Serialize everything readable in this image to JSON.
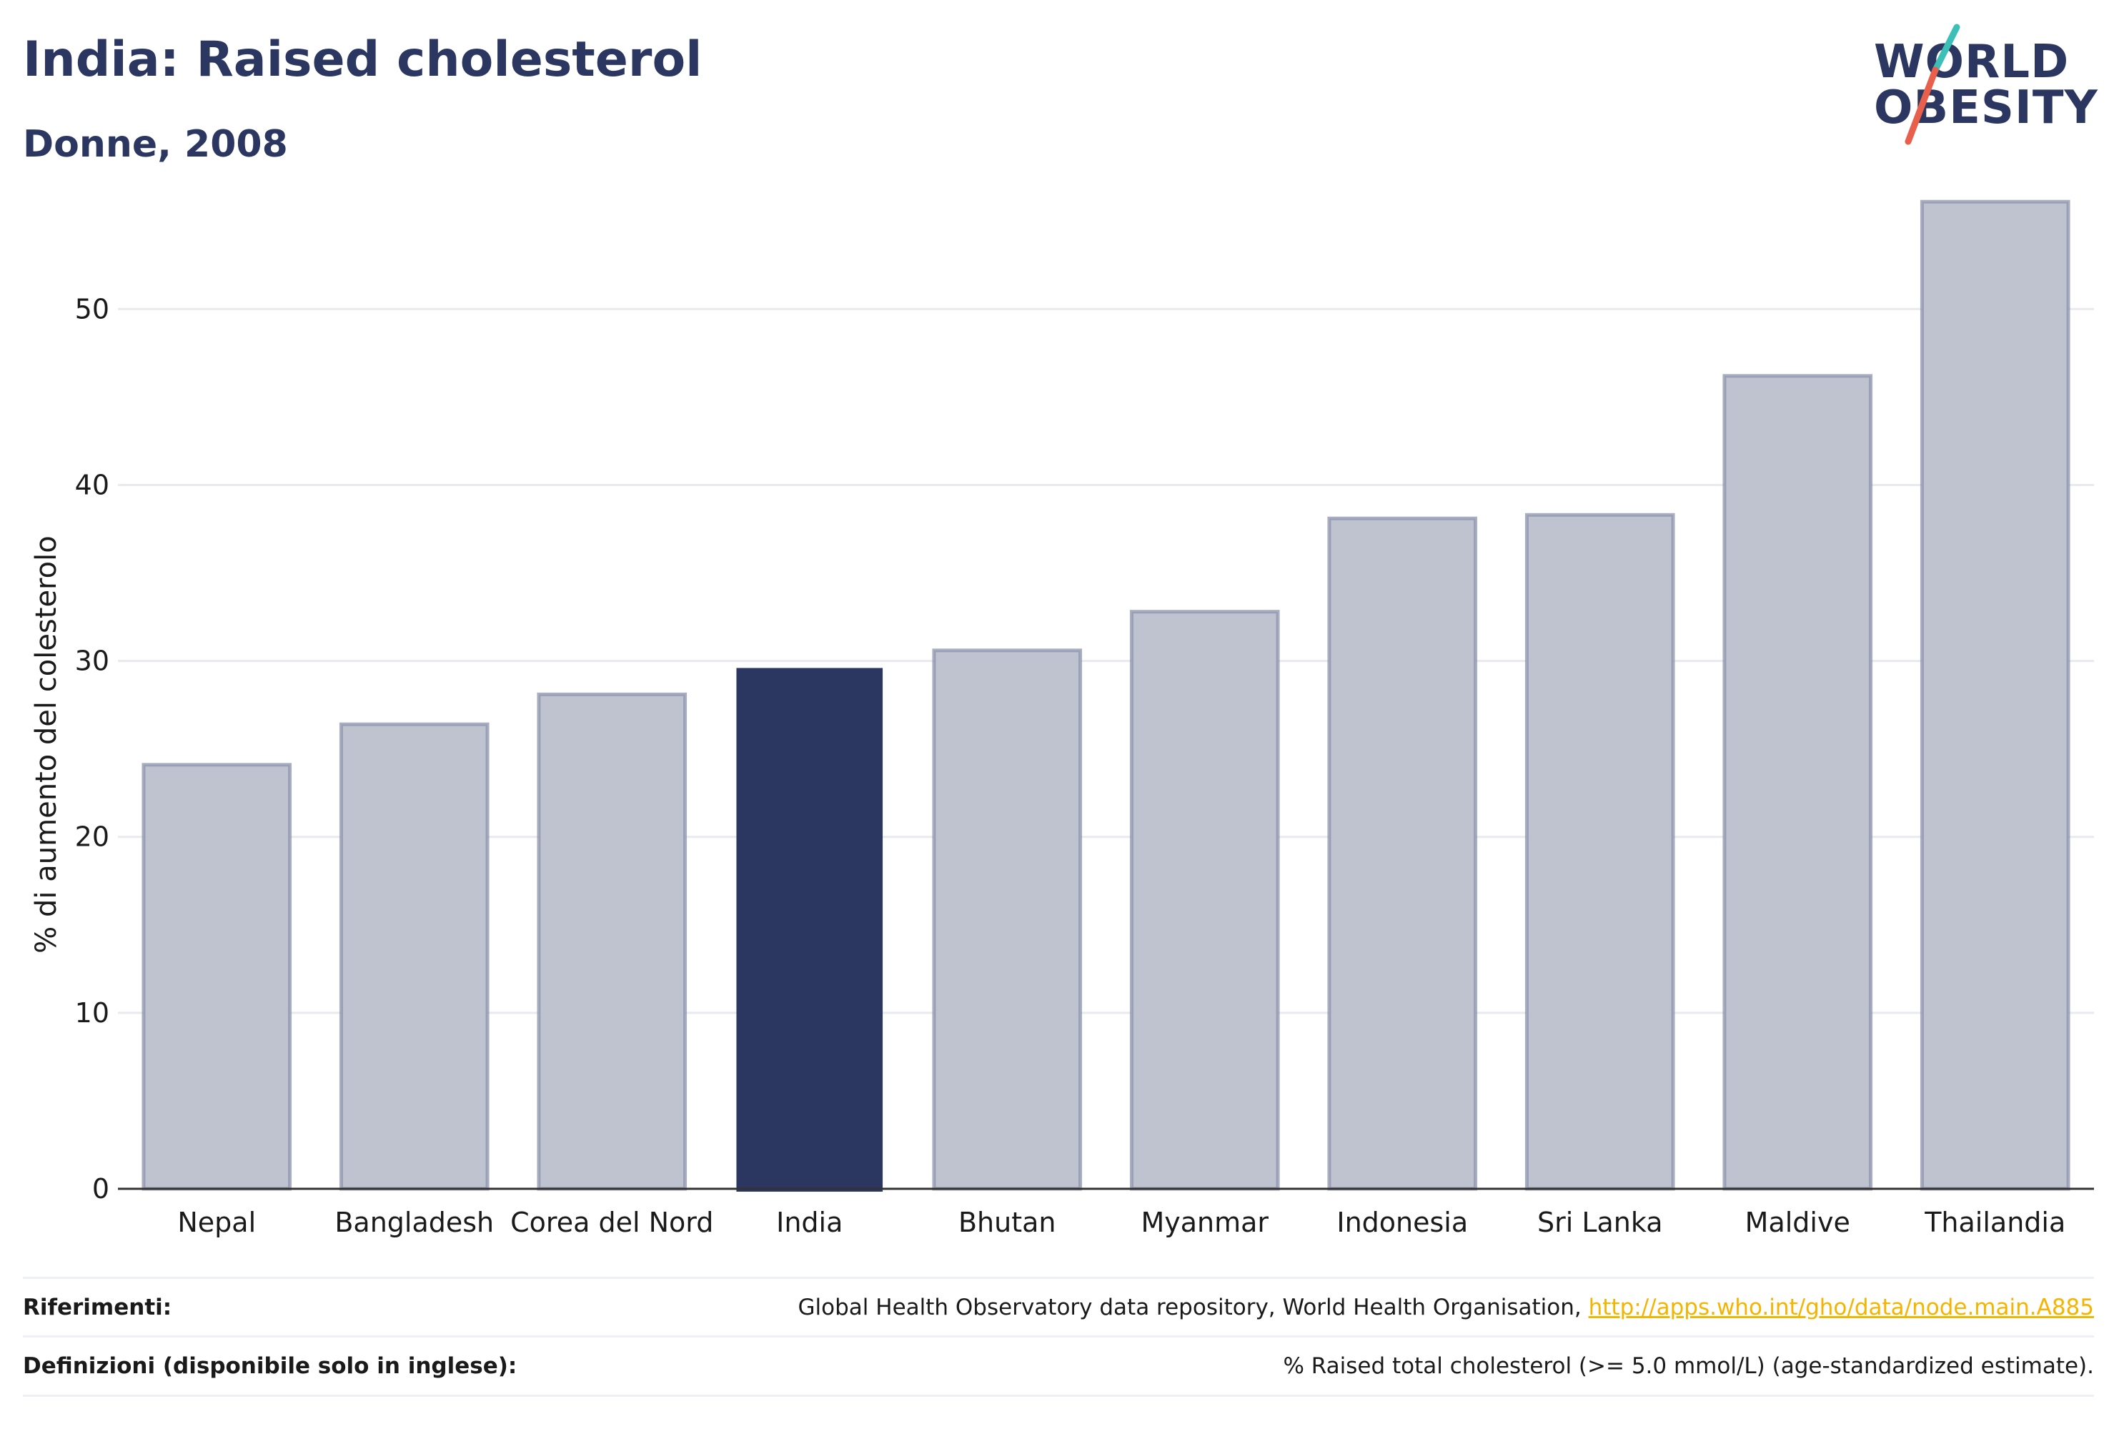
{
  "header": {
    "title": "India: Raised cholesterol",
    "subtitle": "Donne, 2008"
  },
  "logo": {
    "line1": "WORLD",
    "line2": "OBESITY",
    "text_color": "#2b3761",
    "accent_top": "#3bbfb6",
    "accent_bottom": "#e8604c"
  },
  "chart_data": {
    "type": "bar",
    "categories": [
      "Nepal",
      "Bangladesh",
      "Corea del Nord",
      "India",
      "Bhutan",
      "Myanmar",
      "Indonesia",
      "Sri Lanka",
      "Maldive",
      "Thailandia"
    ],
    "values": [
      24.1,
      26.4,
      28.1,
      29.6,
      30.6,
      32.8,
      38.1,
      38.3,
      46.2,
      56.1
    ],
    "highlight": "India",
    "ylabel": "% di aumento del colesterolo",
    "xlabel": "",
    "ylim": [
      0,
      57
    ],
    "yticks": [
      0,
      10,
      20,
      30,
      40,
      50
    ],
    "grid": true,
    "colors": {
      "bar_fill": "#bfc3d0",
      "bar_stroke": "#8c93ac",
      "highlight_fill": "#2b3761",
      "grid": "#e8eaef",
      "axis": "#333333"
    }
  },
  "footer": {
    "references_label": "Riferimenti:",
    "references_text": "Global Health Observatory data repository, World Health Organisation, ",
    "references_link": "http://apps.who.int/gho/data/node.main.A885",
    "definitions_label": "Definizioni (disponibile solo in inglese):",
    "definitions_text": "% Raised total cholesterol (>= 5.0 mmol/L) (age-standardized estimate)."
  }
}
